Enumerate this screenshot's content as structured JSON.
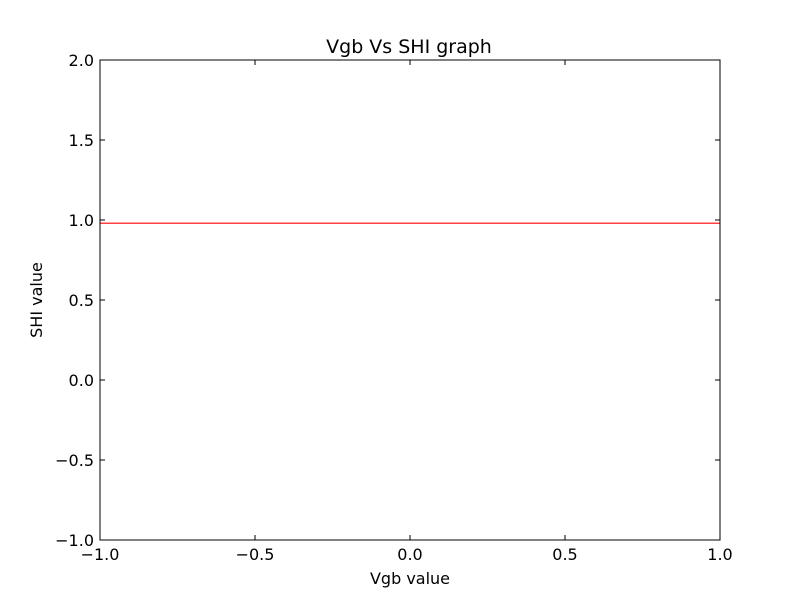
{
  "chart_data": {
    "type": "line",
    "title": "Vgb Vs SHI graph",
    "xlabel": "Vgb value",
    "ylabel": "SHI value",
    "xlim": [
      -1.0,
      1.0
    ],
    "ylim": [
      -1.0,
      2.0
    ],
    "x_ticks": [
      "−1.0",
      "−0.5",
      "0.0",
      "0.5",
      "1.0"
    ],
    "x_tick_values": [
      -1.0,
      -0.5,
      0.0,
      0.5,
      1.0
    ],
    "y_ticks": [
      "−1.0",
      "−0.5",
      "0.0",
      "0.5",
      "1.0",
      "1.5",
      "2.0"
    ],
    "y_tick_values": [
      -1.0,
      -0.5,
      0.0,
      0.5,
      1.0,
      1.5,
      2.0
    ],
    "grid": false,
    "series": [
      {
        "color": "#ff0000",
        "x": [
          -1.0,
          1.0
        ],
        "y": [
          0.98,
          0.98
        ]
      }
    ]
  }
}
